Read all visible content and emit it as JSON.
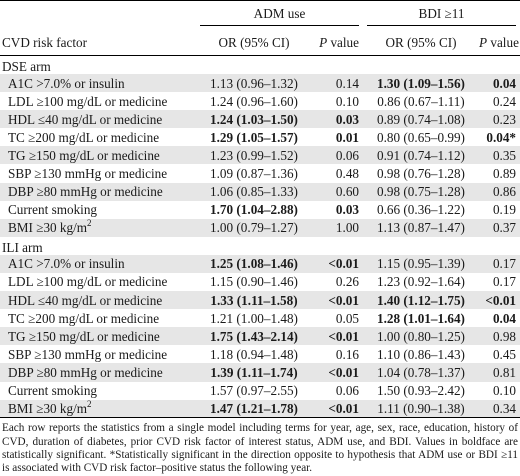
{
  "header": {
    "risk_factor_label": "CVD risk factor",
    "groups": [
      "ADM use",
      "BDI ≥11"
    ],
    "or_label": "OR (95% CI)",
    "p_label_italic": "P",
    "p_label_rest": " value"
  },
  "sections": [
    {
      "title": "DSE arm",
      "rows": [
        {
          "factor": "A1C >7.0% or insulin",
          "sup": "",
          "adm_or": "1.13 (0.96–1.32)",
          "adm_or_bold": false,
          "adm_p": "0.14",
          "adm_p_bold": false,
          "bdi_or": "1.30 (1.09–1.56)",
          "bdi_or_bold": true,
          "bdi_p": "0.04",
          "bdi_p_bold": true
        },
        {
          "factor": "LDL ≥100 mg/dL or medicine",
          "sup": "",
          "adm_or": "1.24 (0.96–1.60)",
          "adm_or_bold": false,
          "adm_p": "0.10",
          "adm_p_bold": false,
          "bdi_or": "0.86 (0.67–1.11)",
          "bdi_or_bold": false,
          "bdi_p": "0.24",
          "bdi_p_bold": false
        },
        {
          "factor": "HDL ≤40 mg/dL or medicine",
          "sup": "",
          "adm_or": "1.24 (1.03–1.50)",
          "adm_or_bold": true,
          "adm_p": "0.03",
          "adm_p_bold": true,
          "bdi_or": "0.89 (0.74–1.08)",
          "bdi_or_bold": false,
          "bdi_p": "0.23",
          "bdi_p_bold": false
        },
        {
          "factor": "TC ≥200 mg/dL or medicine",
          "sup": "",
          "adm_or": "1.29 (1.05–1.57)",
          "adm_or_bold": true,
          "adm_p": "0.01",
          "adm_p_bold": true,
          "bdi_or": "0.80 (0.65–0.99)",
          "bdi_or_bold": false,
          "bdi_p": "0.04*",
          "bdi_p_bold": true
        },
        {
          "factor": "TG ≥150 mg/dL or medicine",
          "sup": "",
          "adm_or": "1.23 (0.99–1.52)",
          "adm_or_bold": false,
          "adm_p": "0.06",
          "adm_p_bold": false,
          "bdi_or": "0.91 (0.74–1.12)",
          "bdi_or_bold": false,
          "bdi_p": "0.35",
          "bdi_p_bold": false
        },
        {
          "factor": "SBP ≥130 mmHg or medicine",
          "sup": "",
          "adm_or": "1.09 (0.87–1.36)",
          "adm_or_bold": false,
          "adm_p": "0.48",
          "adm_p_bold": false,
          "bdi_or": "0.98 (0.76–1.28)",
          "bdi_or_bold": false,
          "bdi_p": "0.89",
          "bdi_p_bold": false
        },
        {
          "factor": "DBP ≥80 mmHg or medicine",
          "sup": "",
          "adm_or": "1.06 (0.85–1.33)",
          "adm_or_bold": false,
          "adm_p": "0.60",
          "adm_p_bold": false,
          "bdi_or": "0.98 (0.75–1.28)",
          "bdi_or_bold": false,
          "bdi_p": "0.86",
          "bdi_p_bold": false
        },
        {
          "factor": "Current smoking",
          "sup": "",
          "adm_or": "1.70 (1.04–2.88)",
          "adm_or_bold": true,
          "adm_p": "0.03",
          "adm_p_bold": true,
          "bdi_or": "0.66 (0.36–1.22)",
          "bdi_or_bold": false,
          "bdi_p": "0.19",
          "bdi_p_bold": false
        },
        {
          "factor": "BMI ≥30 kg/m",
          "sup": "2",
          "adm_or": "1.00 (0.79–1.27)",
          "adm_or_bold": false,
          "adm_p": "1.00",
          "adm_p_bold": false,
          "bdi_or": "1.13 (0.87–1.47)",
          "bdi_or_bold": false,
          "bdi_p": "0.37",
          "bdi_p_bold": false
        }
      ]
    },
    {
      "title": "ILI arm",
      "rows": [
        {
          "factor": "A1C >7.0% or insulin",
          "sup": "",
          "adm_or": "1.25 (1.08–1.46)",
          "adm_or_bold": true,
          "adm_p": "<0.01",
          "adm_p_bold": true,
          "bdi_or": "1.15 (0.95–1.39)",
          "bdi_or_bold": false,
          "bdi_p": "0.17",
          "bdi_p_bold": false
        },
        {
          "factor": "LDL ≥100 mg/dL or medicine",
          "sup": "",
          "adm_or": "1.15 (0.90–1.46)",
          "adm_or_bold": false,
          "adm_p": "0.26",
          "adm_p_bold": false,
          "bdi_or": "1.23 (0.92–1.64)",
          "bdi_or_bold": false,
          "bdi_p": "0.17",
          "bdi_p_bold": false
        },
        {
          "factor": "HDL ≤40 mg/dL or medicine",
          "sup": "",
          "adm_or": "1.33 (1.11–1.58)",
          "adm_or_bold": true,
          "adm_p": "<0.01",
          "adm_p_bold": true,
          "bdi_or": "1.40 (1.12–1.75)",
          "bdi_or_bold": true,
          "bdi_p": "<0.01",
          "bdi_p_bold": true
        },
        {
          "factor": "TC ≥200 mg/dL or medicine",
          "sup": "",
          "adm_or": "1.21 (1.00–1.48)",
          "adm_or_bold": false,
          "adm_p": "0.05",
          "adm_p_bold": false,
          "bdi_or": "1.28 (1.01–1.64)",
          "bdi_or_bold": true,
          "bdi_p": "0.04",
          "bdi_p_bold": true
        },
        {
          "factor": "TG ≥150 mg/dL or medicine",
          "sup": "",
          "adm_or": "1.75 (1.43–2.14)",
          "adm_or_bold": true,
          "adm_p": "<0.01",
          "adm_p_bold": true,
          "bdi_or": "1.00 (0.80–1.25)",
          "bdi_or_bold": false,
          "bdi_p": "0.98",
          "bdi_p_bold": false
        },
        {
          "factor": "SBP ≥130 mmHg or medicine",
          "sup": "",
          "adm_or": "1.18 (0.94–1.48)",
          "adm_or_bold": false,
          "adm_p": "0.16",
          "adm_p_bold": false,
          "bdi_or": "1.10 (0.86–1.43)",
          "bdi_or_bold": false,
          "bdi_p": "0.45",
          "bdi_p_bold": false
        },
        {
          "factor": "DBP ≥80 mmHg or medicine",
          "sup": "",
          "adm_or": "1.39 (1.11–1.74)",
          "adm_or_bold": true,
          "adm_p": "<0.01",
          "adm_p_bold": true,
          "bdi_or": "1.04 (0.78–1.37)",
          "bdi_or_bold": false,
          "bdi_p": "0.81",
          "bdi_p_bold": false
        },
        {
          "factor": "Current smoking",
          "sup": "",
          "adm_or": "1.57 (0.97–2.55)",
          "adm_or_bold": false,
          "adm_p": "0.06",
          "adm_p_bold": false,
          "bdi_or": "1.50 (0.93–2.42)",
          "bdi_or_bold": false,
          "bdi_p": "0.10",
          "bdi_p_bold": false
        },
        {
          "factor": "BMI ≥30 kg/m",
          "sup": "2",
          "adm_or": "1.47 (1.21–1.78)",
          "adm_or_bold": true,
          "adm_p": "<0.01",
          "adm_p_bold": true,
          "bdi_or": "1.11 (0.90–1.38)",
          "bdi_or_bold": false,
          "bdi_p": "0.34",
          "bdi_p_bold": false
        }
      ]
    }
  ],
  "footnote": "Each row reports the statistics from a single model including terms for year, age, sex, race, education, history of CVD, duration of diabetes, prior CVD risk factor of interest status, ADM use, and BDI. Values in boldface are statistically significant. *Statistically significant in the direction opposite to hypothesis that ADM use or BDI ≥11 is associated with CVD risk factor–positive status the following year.",
  "colors": {
    "row_shade": "#e6e6e6",
    "rule": "#000000",
    "text": "#1a1a1a"
  }
}
